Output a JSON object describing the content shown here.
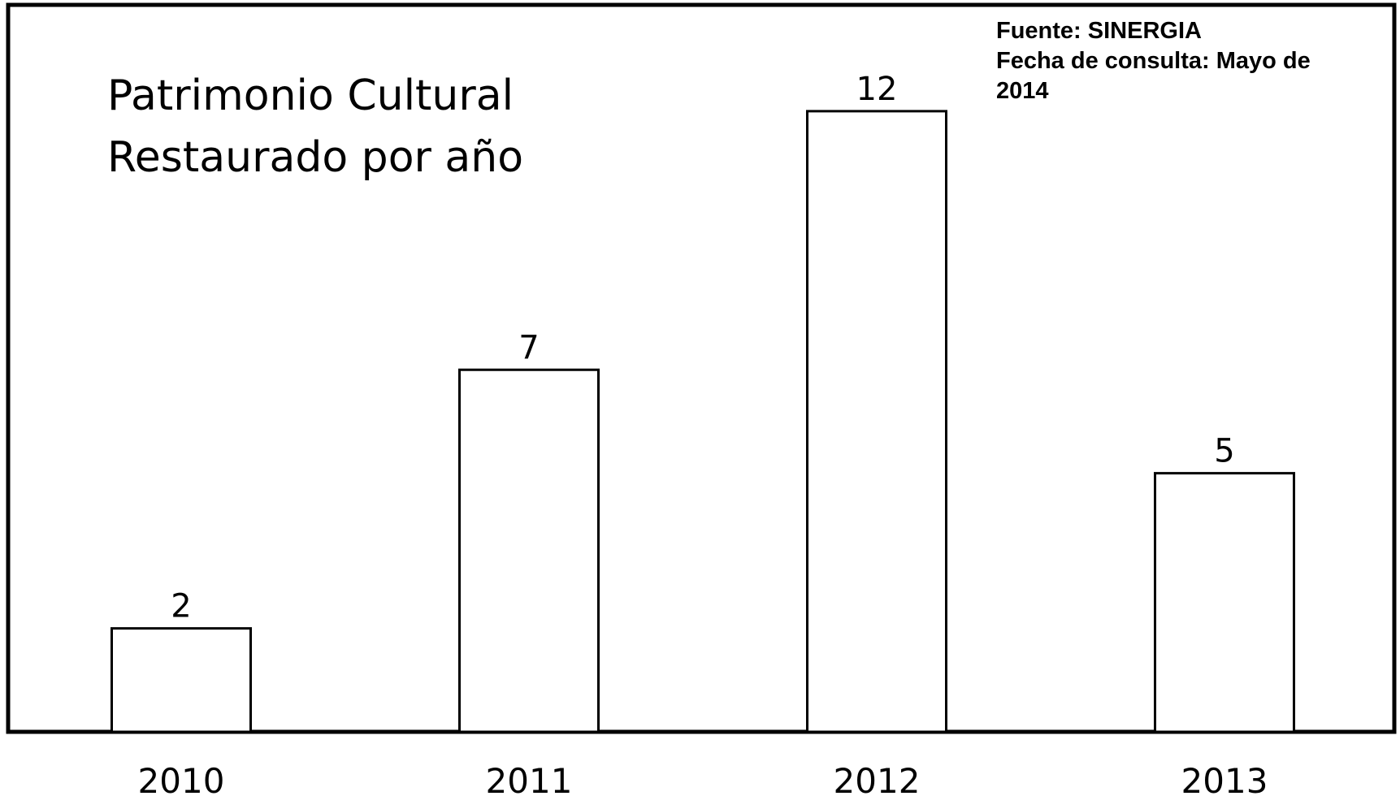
{
  "chart_data": {
    "type": "bar",
    "title": [
      "Patrimonio Cultural",
      "Restaurado por año"
    ],
    "categories": [
      "2010",
      "2011",
      "2012",
      "2013"
    ],
    "values": [
      2,
      7,
      12,
      5
    ],
    "data_labels": [
      "2",
      "7",
      "12",
      "5"
    ],
    "ylim": [
      0,
      13.6
    ],
    "grid": false,
    "y_axis_visible": false,
    "annotation": [
      "Fuente: SINERGIA",
      "Fecha de consulta: Mayo de",
      "2014"
    ],
    "colors": {
      "bar_fill": "#ffffff",
      "bar_stroke": "#000000",
      "frame": "#000000",
      "text": "#000000"
    }
  }
}
